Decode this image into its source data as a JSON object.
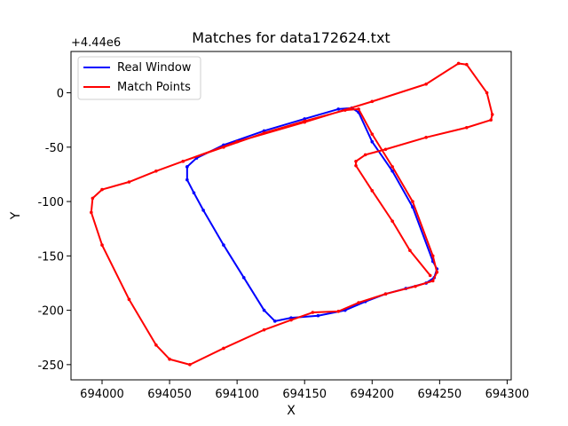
{
  "chart_data": {
    "type": "line",
    "title": "Matches for data172624.txt",
    "xlabel": "X",
    "ylabel": "Y",
    "y_offset_label": "+4.44e6",
    "xlim": [
      693977,
      694303
    ],
    "ylim": [
      -264,
      38
    ],
    "x_ticks": [
      694000,
      694050,
      694100,
      694150,
      694200,
      694250,
      694300
    ],
    "y_ticks": [
      0,
      -50,
      -100,
      -150,
      -200,
      -250
    ],
    "grid": false,
    "legend": "top-left",
    "series": [
      {
        "name": "Real Window",
        "color": "#0000ff",
        "points": [
          [
            694063,
            -68
          ],
          [
            694070,
            -60
          ],
          [
            694090,
            -48
          ],
          [
            694120,
            -35
          ],
          [
            694150,
            -24
          ],
          [
            694175,
            -15
          ],
          [
            694185,
            -14
          ],
          [
            694190,
            -18
          ],
          [
            694200,
            -45
          ],
          [
            694215,
            -72
          ],
          [
            694230,
            -105
          ],
          [
            694245,
            -155
          ],
          [
            694248,
            -162
          ],
          [
            694246,
            -170
          ],
          [
            694240,
            -175
          ],
          [
            694225,
            -180
          ],
          [
            694210,
            -185
          ],
          [
            694195,
            -192
          ],
          [
            694180,
            -200
          ],
          [
            694160,
            -205
          ],
          [
            694140,
            -207
          ],
          [
            694128,
            -210
          ],
          [
            694120,
            -200
          ],
          [
            694105,
            -170
          ],
          [
            694090,
            -140
          ],
          [
            694075,
            -108
          ],
          [
            694068,
            -92
          ],
          [
            694063,
            -80
          ],
          [
            694063,
            -68
          ]
        ]
      },
      {
        "name": "Match Points",
        "color": "#ff0000",
        "points": [
          [
            694060,
            -63
          ],
          [
            694090,
            -50
          ],
          [
            694120,
            -37
          ],
          [
            694150,
            -26
          ],
          [
            694180,
            -16
          ],
          [
            694190,
            -15
          ],
          [
            694200,
            -38
          ],
          [
            694215,
            -68
          ],
          [
            694230,
            -100
          ],
          [
            694245,
            -150
          ],
          [
            694248,
            -165
          ],
          [
            694245,
            -173
          ],
          [
            694232,
            -178
          ],
          [
            694210,
            -185
          ],
          [
            694190,
            -193
          ],
          [
            694175,
            -201
          ],
          [
            694156,
            -202
          ],
          [
            694140,
            -209
          ],
          [
            694120,
            -218
          ],
          [
            694090,
            -235
          ],
          [
            694065,
            -250
          ],
          [
            694050,
            -245
          ],
          [
            694040,
            -232
          ],
          [
            694020,
            -190
          ],
          [
            694000,
            -140
          ],
          [
            693992,
            -110
          ],
          [
            693993,
            -97
          ],
          [
            694000,
            -89
          ],
          [
            694020,
            -82
          ],
          [
            694040,
            -72
          ],
          [
            694060,
            -63
          ],
          [
            694100,
            -45
          ],
          [
            694150,
            -27
          ],
          [
            694200,
            -8
          ],
          [
            694240,
            8
          ],
          [
            694264,
            27
          ],
          [
            694270,
            26
          ],
          [
            694285,
            0
          ],
          [
            694289,
            -20
          ],
          [
            694288,
            -25
          ],
          [
            694270,
            -32
          ],
          [
            694240,
            -41
          ],
          [
            694210,
            -52
          ],
          [
            694195,
            -57
          ],
          [
            694188,
            -63
          ],
          [
            694188,
            -67
          ],
          [
            694200,
            -90
          ],
          [
            694215,
            -118
          ],
          [
            694228,
            -145
          ],
          [
            694243,
            -168
          ]
        ]
      }
    ]
  }
}
